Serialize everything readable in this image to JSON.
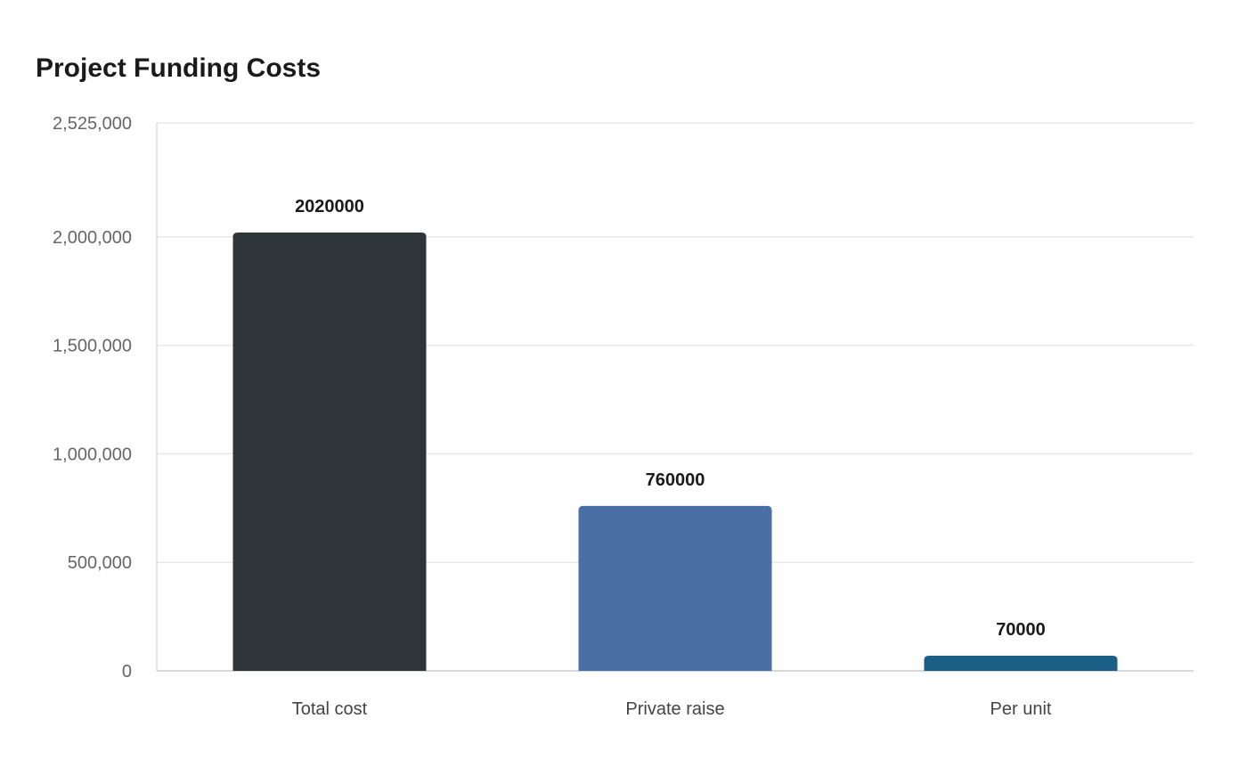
{
  "chart_data": {
    "type": "bar",
    "title": "Project Funding Costs",
    "xlabel": "",
    "ylabel": "",
    "categories": [
      "Total cost",
      "Private raise",
      "Per unit"
    ],
    "values": [
      2020000,
      760000,
      70000
    ],
    "value_labels": [
      "2020000",
      "760000",
      "70000"
    ],
    "bar_colors": [
      "#2e3538",
      "#4a6fa5",
      "#1b5e86"
    ],
    "ylim": [
      0,
      2525000
    ],
    "yticks": [
      0,
      500000,
      1000000,
      1500000,
      2000000,
      2525000
    ],
    "ytick_labels": [
      "0",
      "500,000",
      "1,000,000",
      "1,500,000",
      "2,000,000",
      "2,525,000"
    ],
    "grid": true,
    "legend": "none"
  }
}
